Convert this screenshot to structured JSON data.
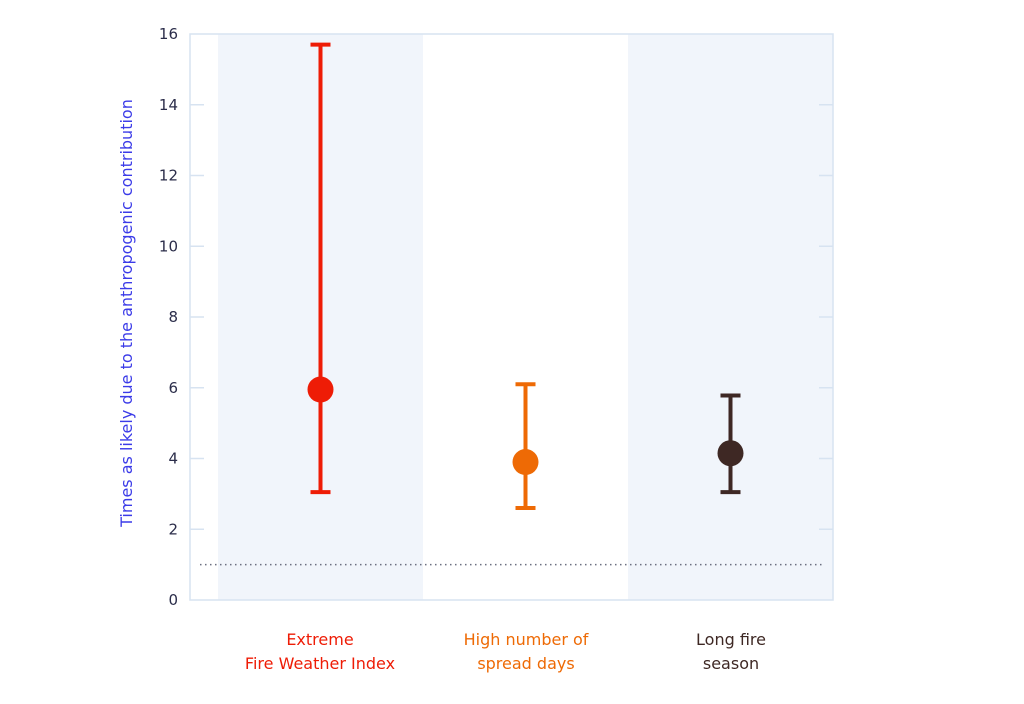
{
  "chart_data": {
    "type": "errorbar",
    "title": "",
    "xlabel": "",
    "ylabel": "Times as likely due to the anthropogenic contribution",
    "ylim": [
      0,
      16
    ],
    "yticks": [
      0,
      2,
      4,
      6,
      8,
      10,
      12,
      14,
      16
    ],
    "reference_line": {
      "value": 1,
      "style": "dotted"
    },
    "categories": [
      "Extreme\nFire Weather Index",
      "High number of\nspread days",
      "Long fire\nseason"
    ],
    "series": [
      {
        "name": "Extreme Fire Weather Index",
        "value": 5.95,
        "lower": 3.05,
        "upper": 15.7,
        "color": "#ee1c06",
        "shaded_background": true
      },
      {
        "name": "High number of spread days",
        "value": 3.9,
        "lower": 2.6,
        "upper": 6.1,
        "color": "#ee6a05",
        "shaded_background": false
      },
      {
        "name": "Long fire season",
        "value": 4.15,
        "lower": 3.05,
        "upper": 5.78,
        "color": "#3e2824",
        "shaded_background": true
      }
    ],
    "grid": false,
    "legend": "none"
  },
  "labels": {
    "y_title": "Times as likely due to the anthropogenic contribution",
    "cat1_line1": "Extreme",
    "cat1_line2": "Fire Weather Index",
    "cat2_line1": "High number of",
    "cat2_line2": "spread days",
    "cat3_line1": "Long fire",
    "cat3_line2": "season"
  },
  "colors": {
    "axis_title": "#3b3be8",
    "tick_text": "#2b2d4a",
    "axis_line": "#d7e3f1",
    "band": "#f1f5fb",
    "reference_line": "#6b6f80"
  }
}
